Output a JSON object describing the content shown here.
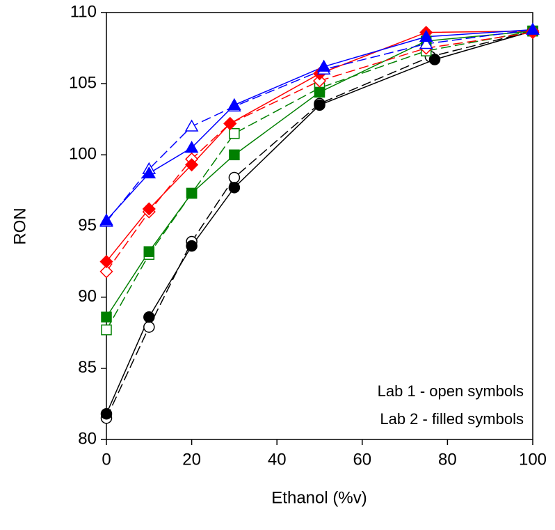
{
  "chart_data": {
    "type": "line",
    "x_label": "Ethanol (%v)",
    "y_label": "RON",
    "annotations": [
      "Lab 1 - open symbols",
      "Lab 2 - filled symbols"
    ],
    "xlim": [
      0,
      100
    ],
    "xticks": [
      0,
      20,
      40,
      60,
      80,
      100
    ],
    "ylim": [
      80,
      110
    ],
    "yticks": [
      80,
      85,
      90,
      95,
      100,
      105,
      110
    ],
    "grid": false,
    "series": [
      {
        "color": "#000000",
        "marker": "circle",
        "filled": false,
        "dashed": true,
        "x": [
          0,
          10,
          20,
          30,
          50,
          76,
          100
        ],
        "values": [
          81.5,
          87.9,
          93.9,
          98.4,
          103.6,
          106.9,
          108.7
        ]
      },
      {
        "color": "#000000",
        "marker": "circle",
        "filled": true,
        "dashed": false,
        "x": [
          0,
          10,
          20,
          30,
          50,
          77,
          100
        ],
        "values": [
          81.8,
          88.6,
          93.6,
          97.7,
          103.5,
          106.7,
          108.7
        ]
      },
      {
        "color": "#008000",
        "marker": "square",
        "filled": false,
        "dashed": true,
        "x": [
          0,
          10,
          20,
          30,
          50,
          75,
          100
        ],
        "values": [
          87.7,
          93.0,
          97.3,
          101.5,
          104.7,
          107.3,
          108.7
        ]
      },
      {
        "color": "#008000",
        "marker": "square",
        "filled": true,
        "dashed": false,
        "x": [
          0,
          10,
          20,
          30,
          50,
          75,
          100
        ],
        "values": [
          88.6,
          93.2,
          97.3,
          100.0,
          104.4,
          108.0,
          108.7
        ]
      },
      {
        "color": "#ff0000",
        "marker": "diamond",
        "filled": false,
        "dashed": true,
        "x": [
          0,
          10,
          20,
          29,
          50,
          75,
          100
        ],
        "values": [
          91.8,
          96.0,
          99.7,
          102.2,
          105.2,
          107.5,
          108.6
        ]
      },
      {
        "color": "#ff0000",
        "marker": "diamond",
        "filled": true,
        "dashed": false,
        "x": [
          0,
          10,
          20,
          29,
          50,
          75,
          100
        ],
        "values": [
          92.5,
          96.2,
          99.3,
          102.2,
          105.7,
          108.6,
          108.7
        ]
      },
      {
        "color": "#0000ff",
        "marker": "triangle",
        "filled": false,
        "dashed": true,
        "x": [
          0,
          10,
          20,
          30,
          51,
          75,
          100
        ],
        "values": [
          95.3,
          99.0,
          102.0,
          103.4,
          106.0,
          107.8,
          108.8
        ]
      },
      {
        "color": "#0000ff",
        "marker": "triangle",
        "filled": true,
        "dashed": false,
        "x": [
          0,
          10,
          20,
          30,
          51,
          75,
          100
        ],
        "values": [
          95.4,
          98.7,
          100.5,
          103.5,
          106.2,
          108.3,
          108.8
        ]
      }
    ]
  }
}
